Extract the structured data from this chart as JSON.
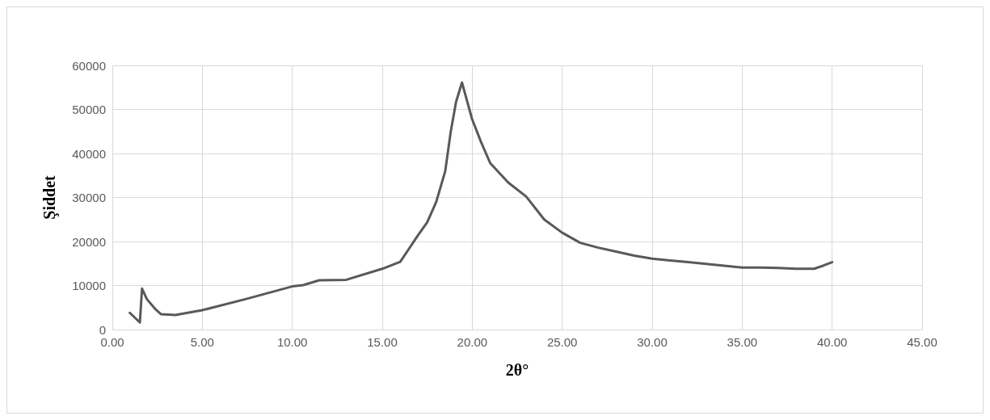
{
  "chart_data": {
    "type": "line",
    "xlabel": "2θ°",
    "ylabel": "Şiddet",
    "series": [
      {
        "color": "#595959",
        "x": [
          0.97,
          1.53,
          1.65,
          1.92,
          2.4,
          2.7,
          3.5,
          5,
          7.4,
          10,
          10.6,
          11.5,
          13,
          15,
          16,
          17,
          17.5,
          18,
          18.5,
          18.8,
          19.1,
          19.43,
          20,
          20.5,
          21,
          22,
          23,
          24,
          25,
          26,
          27,
          28,
          29,
          30,
          31,
          32,
          33,
          34,
          35,
          36,
          37,
          38,
          39,
          39.5,
          40
        ],
        "values": [
          3800,
          1600,
          9300,
          6900,
          4600,
          3500,
          3300,
          4400,
          6900,
          9800,
          10100,
          11200,
          11300,
          13800,
          15400,
          21500,
          24400,
          29000,
          36000,
          44800,
          51700,
          56100,
          47700,
          42500,
          37800,
          33400,
          30200,
          25000,
          22000,
          19700,
          18600,
          17700,
          16800,
          16100,
          15700,
          15300,
          14900,
          14500,
          14100,
          14100,
          14000,
          13800,
          13800,
          14500,
          15300
        ]
      }
    ],
    "xlim": [
      0,
      45
    ],
    "xticks": [
      {
        "value": 0,
        "label": "0.00"
      },
      {
        "value": 5,
        "label": "5.00"
      },
      {
        "value": 10,
        "label": "10.00"
      },
      {
        "value": 15,
        "label": "15.00"
      },
      {
        "value": 20,
        "label": "20.00"
      },
      {
        "value": 25,
        "label": "25.00"
      },
      {
        "value": 30,
        "label": "30.00"
      },
      {
        "value": 35,
        "label": "35.00"
      },
      {
        "value": 40,
        "label": "40.00"
      },
      {
        "value": 45,
        "label": "45.00"
      }
    ],
    "ylim": [
      0,
      60000
    ],
    "yticks": [
      0,
      10000,
      20000,
      30000,
      40000,
      50000,
      60000
    ],
    "grid": true,
    "marker": "none",
    "line_style": "solid"
  }
}
